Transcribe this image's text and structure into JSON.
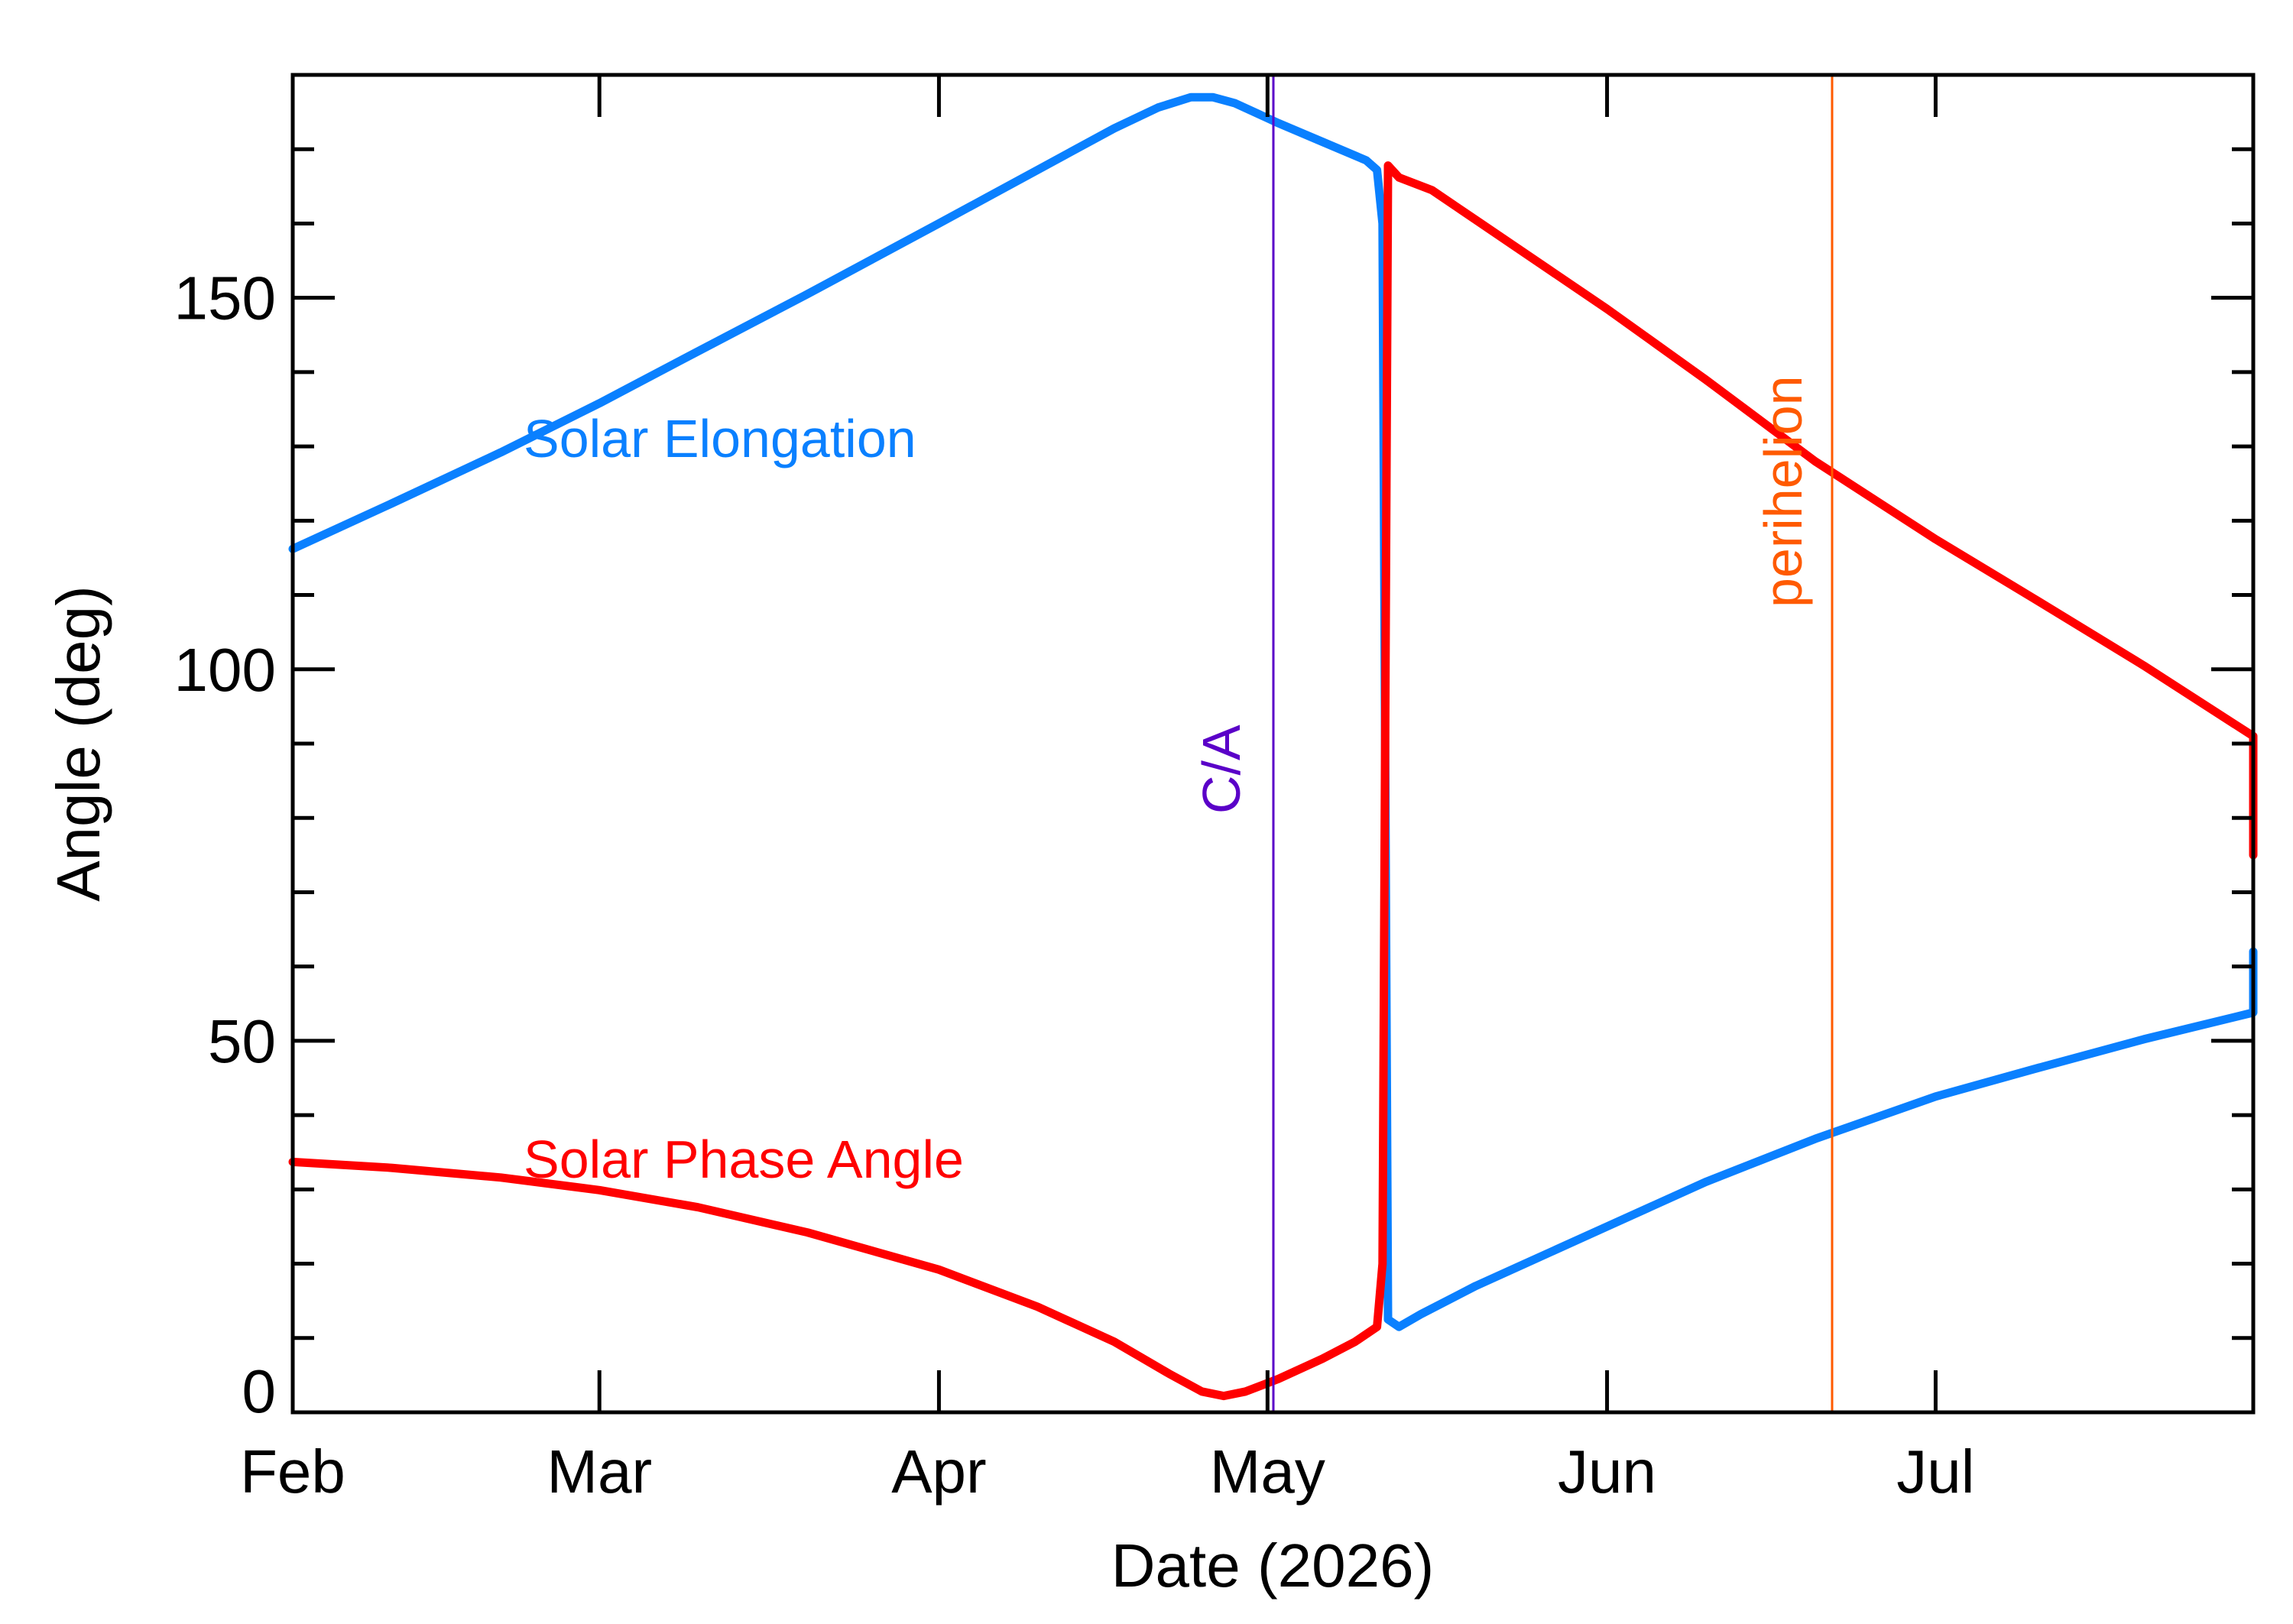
{
  "chart_data": {
    "type": "line",
    "xlabel": "Date (2026)",
    "ylabel": "Angle (deg)",
    "x_range": [
      "2026-02-01",
      "2026-07-30"
    ],
    "ylim": [
      0,
      180
    ],
    "y_ticks": [
      0,
      50,
      100,
      150
    ],
    "y_tick_labels": [
      "0",
      "50",
      "100",
      "150"
    ],
    "y_minor_step": 10,
    "x_ticks": [
      {
        "date": "2026-02-01",
        "label": "Feb"
      },
      {
        "date": "2026-03-01",
        "label": "Mar"
      },
      {
        "date": "2026-04-01",
        "label": "Apr"
      },
      {
        "date": "2026-05-01",
        "label": "May"
      },
      {
        "date": "2026-06-01",
        "label": "Jun"
      },
      {
        "date": "2026-07-01",
        "label": "Jul"
      }
    ],
    "grid": false,
    "series": [
      {
        "name": "Solar Elongation",
        "color": "#0a80ff",
        "points": [
          [
            "2026-02-01",
            116.2
          ],
          [
            "2026-02-10",
            122.3
          ],
          [
            "2026-02-20",
            129.2
          ],
          [
            "2026-03-01",
            135.8
          ],
          [
            "2026-03-10",
            142.8
          ],
          [
            "2026-03-20",
            150.5
          ],
          [
            "2026-04-01",
            160.0
          ],
          [
            "2026-04-10",
            167.2
          ],
          [
            "2026-04-17",
            172.8
          ],
          [
            "2026-04-21",
            175.6
          ],
          [
            "2026-04-24",
            177.0
          ],
          [
            "2026-04-26",
            177.0
          ],
          [
            "2026-04-28",
            176.2
          ],
          [
            "2026-05-02",
            173.5
          ],
          [
            "2026-05-06",
            171.0
          ],
          [
            "2026-05-10",
            168.5
          ],
          [
            "2026-05-11",
            167.2
          ],
          [
            "2026-05-11.5",
            160.0
          ],
          [
            "2026-05-12",
            12.5
          ],
          [
            "2026-05-13",
            11.5
          ],
          [
            "2026-05-15",
            13.2
          ],
          [
            "2026-05-20",
            17.0
          ],
          [
            "2026-06-01",
            25.0
          ],
          [
            "2026-06-10",
            31.0
          ],
          [
            "2026-06-20",
            36.8
          ],
          [
            "2026-07-01",
            42.5
          ],
          [
            "2026-07-10",
            46.2
          ],
          [
            "2026-07-20",
            50.2
          ],
          [
            "2026-08-01",
            53.8
          ],
          [
            "2026-08-10",
            56.0
          ],
          [
            "2026-08-20",
            58.5
          ],
          [
            "2026-09-01",
            62.0
          ]
        ]
      },
      {
        "name": "Solar Phase Angle",
        "color": "#ff0000",
        "points": [
          [
            "2026-02-01",
            33.7
          ],
          [
            "2026-02-10",
            32.9
          ],
          [
            "2026-02-20",
            31.6
          ],
          [
            "2026-03-01",
            29.9
          ],
          [
            "2026-03-10",
            27.6
          ],
          [
            "2026-03-20",
            24.2
          ],
          [
            "2026-04-01",
            19.2
          ],
          [
            "2026-04-10",
            14.2
          ],
          [
            "2026-04-17",
            9.5
          ],
          [
            "2026-04-22",
            5.2
          ],
          [
            "2026-04-25",
            2.8
          ],
          [
            "2026-04-27",
            2.2
          ],
          [
            "2026-04-29",
            2.8
          ],
          [
            "2026-05-02",
            4.5
          ],
          [
            "2026-05-06",
            7.2
          ],
          [
            "2026-05-09",
            9.5
          ],
          [
            "2026-05-11",
            11.5
          ],
          [
            "2026-05-11.5",
            20.0
          ],
          [
            "2026-05-12",
            167.8
          ],
          [
            "2026-05-13",
            166.2
          ],
          [
            "2026-05-16",
            164.5
          ],
          [
            "2026-05-20",
            160.5
          ],
          [
            "2026-06-01",
            148.5
          ],
          [
            "2026-06-10",
            139.0
          ],
          [
            "2026-06-20",
            128.0
          ],
          [
            "2026-07-01",
            117.5
          ],
          [
            "2026-07-10",
            109.5
          ],
          [
            "2026-07-20",
            100.5
          ],
          [
            "2026-08-01",
            91.0
          ],
          [
            "2026-08-10",
            84.0
          ],
          [
            "2026-08-20",
            78.0
          ],
          [
            "2026-09-01",
            75.0
          ]
        ]
      }
    ],
    "annotations": [
      {
        "label": "C/A",
        "color": "#5a00c8"
      },
      {
        "label": "perihelion",
        "color": "#ff5a00"
      }
    ]
  }
}
